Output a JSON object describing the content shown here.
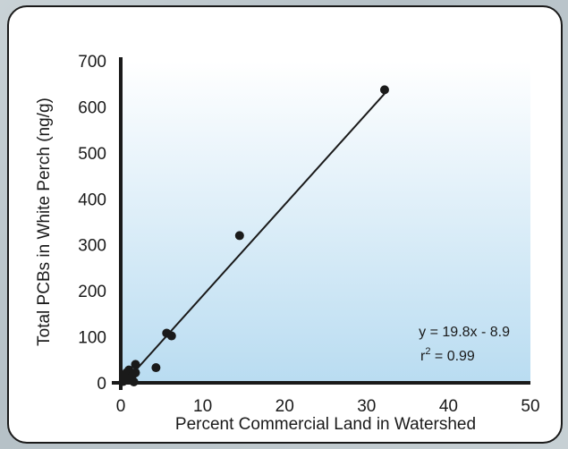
{
  "chart_data": {
    "type": "scatter",
    "xlabel": "Percent Commercial Land in Watershed",
    "ylabel": "Total PCBs in White Perch (ng/g)",
    "xlim": [
      0,
      50
    ],
    "ylim": [
      0,
      700
    ],
    "xticks": [
      "0",
      "10",
      "20",
      "30",
      "40",
      "50"
    ],
    "yticks": [
      "0",
      "100",
      "200",
      "300",
      "400",
      "500",
      "600",
      "700"
    ],
    "points": [
      {
        "x": 0.3,
        "y": 3
      },
      {
        "x": 0.5,
        "y": 12
      },
      {
        "x": 0.7,
        "y": 22
      },
      {
        "x": 1.0,
        "y": 28
      },
      {
        "x": 1.2,
        "y": 8
      },
      {
        "x": 1.5,
        "y": 18
      },
      {
        "x": 1.6,
        "y": 2
      },
      {
        "x": 1.8,
        "y": 22
      },
      {
        "x": 1.8,
        "y": 40
      },
      {
        "x": 4.3,
        "y": 33
      },
      {
        "x": 5.6,
        "y": 108
      },
      {
        "x": 6.2,
        "y": 102
      },
      {
        "x": 14.5,
        "y": 320
      },
      {
        "x": 32.2,
        "y": 637
      }
    ],
    "fit_line": {
      "slope": 19.8,
      "intercept": -8.9,
      "x_start": 0.5,
      "x_end": 32.2
    },
    "annotation": {
      "equation": "y = 19.8x - 8.9",
      "r2_prefix": "r",
      "r2_sup": "2",
      "r2_suffix": " = 0.99"
    },
    "grid": false,
    "legend": "none",
    "colors": {
      "point": "#1a1a1a",
      "line": "#1a1a1a",
      "plot_bg_top": "#ffffff",
      "plot_bg_bottom": "#b9dcf1"
    }
  }
}
